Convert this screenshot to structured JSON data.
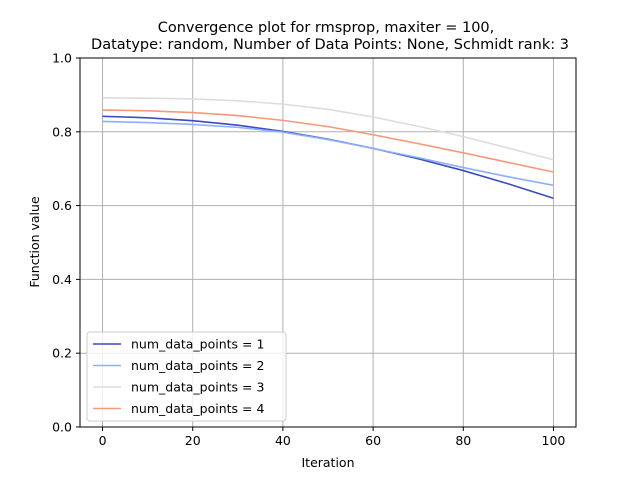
{
  "chart_data": {
    "type": "line",
    "title_line1": "Convergence plot for rmsprop, maxiter = 100,",
    "title_line2": "Datatype: random, Number of Data Points: None, Schmidt rank: 3",
    "xlabel": "Iteration",
    "ylabel": "Function value",
    "xlim": [
      -5,
      105
    ],
    "ylim": [
      0.0,
      1.0
    ],
    "xticks": [
      0,
      20,
      40,
      60,
      80,
      100
    ],
    "xtick_labels": [
      "0",
      "20",
      "40",
      "60",
      "80",
      "100"
    ],
    "yticks": [
      0.0,
      0.2,
      0.4,
      0.6,
      0.8,
      1.0
    ],
    "ytick_labels": [
      "0.0",
      "0.2",
      "0.4",
      "0.6",
      "0.8",
      "1.0"
    ],
    "grid": true,
    "legend_position": "lower-left",
    "x": [
      0,
      10,
      20,
      30,
      40,
      50,
      60,
      70,
      80,
      90,
      100
    ],
    "series": [
      {
        "name": "num_data_points = 1",
        "color": "#3b4cc0",
        "values": [
          0.842,
          0.838,
          0.83,
          0.818,
          0.801,
          0.78,
          0.755,
          0.727,
          0.695,
          0.659,
          0.62
        ]
      },
      {
        "name": "num_data_points = 2",
        "color": "#8db0fe",
        "values": [
          0.828,
          0.825,
          0.82,
          0.812,
          0.799,
          0.779,
          0.755,
          0.73,
          0.703,
          0.678,
          0.655
        ]
      },
      {
        "name": "num_data_points = 3",
        "color": "#dddddd",
        "values": [
          0.892,
          0.891,
          0.889,
          0.884,
          0.875,
          0.861,
          0.84,
          0.815,
          0.787,
          0.756,
          0.724
        ]
      },
      {
        "name": "num_data_points = 4",
        "color": "#f49a7b",
        "values": [
          0.859,
          0.857,
          0.852,
          0.844,
          0.831,
          0.814,
          0.792,
          0.768,
          0.743,
          0.717,
          0.691
        ]
      }
    ]
  }
}
